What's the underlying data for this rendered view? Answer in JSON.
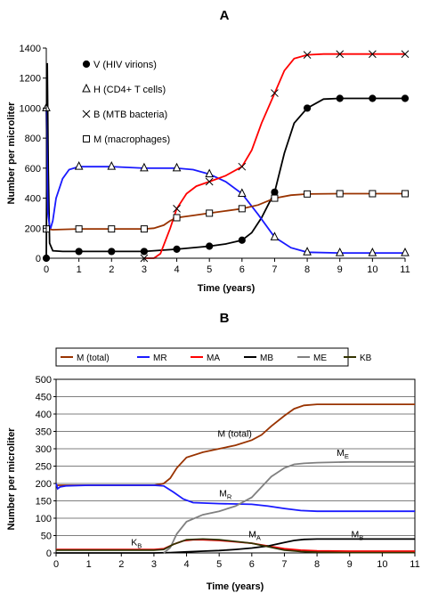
{
  "chart_data": [
    {
      "panel": "A",
      "type": "line",
      "xlabel": "Time (years)",
      "ylabel": "Number per microliter",
      "xlim": [
        0,
        11
      ],
      "ylim": [
        0,
        1400
      ],
      "xticks": [
        0,
        1,
        2,
        3,
        4,
        5,
        6,
        7,
        8,
        9,
        10,
        11
      ],
      "yticks": [
        0,
        200,
        400,
        600,
        800,
        1000,
        1200,
        1400
      ],
      "grid": false,
      "legend_position": "top-right",
      "series": [
        {
          "name": "V (HIV virions)",
          "color": "#000000",
          "marker": "filled-circle",
          "x": [
            0,
            0.03,
            0.06,
            0.1,
            0.2,
            0.5,
            1,
            2,
            3,
            4,
            5,
            5.5,
            6,
            6.3,
            6.6,
            7,
            7.3,
            7.6,
            8,
            8.5,
            9,
            10,
            11
          ],
          "y": [
            0,
            1300,
            600,
            100,
            50,
            45,
            45,
            45,
            45,
            60,
            80,
            95,
            120,
            170,
            270,
            440,
            700,
            900,
            1000,
            1060,
            1065,
            1065,
            1065
          ],
          "markers_x": [
            0,
            1,
            2,
            3,
            4,
            5,
            6,
            7,
            8,
            9,
            10,
            11
          ],
          "markers_y": [
            0,
            45,
            45,
            45,
            60,
            80,
            120,
            440,
            1000,
            1065,
            1065,
            1065
          ]
        },
        {
          "name": "H (CD4+ T cells)",
          "color": "#1a1aff",
          "marker": "open-triangle",
          "x": [
            0,
            0.05,
            0.12,
            0.2,
            0.3,
            0.5,
            0.7,
            1,
            2,
            3,
            4,
            4.5,
            5,
            5.5,
            6,
            6.5,
            7,
            7.5,
            8,
            9,
            10,
            11
          ],
          "y": [
            1000,
            300,
            190,
            250,
            400,
            530,
            590,
            610,
            610,
            600,
            600,
            590,
            560,
            510,
            430,
            290,
            140,
            70,
            40,
            35,
            35,
            35
          ],
          "markers_x": [
            0,
            1,
            2,
            3,
            4,
            5,
            6,
            7,
            8,
            9,
            10,
            11
          ],
          "markers_y": [
            1000,
            610,
            610,
            600,
            600,
            560,
            430,
            140,
            40,
            35,
            35,
            35
          ]
        },
        {
          "name": "B (MTB bacteria)",
          "color": "#ff0000",
          "marker": "x",
          "x": [
            3,
            3.3,
            3.5,
            3.8,
            4,
            4.3,
            4.6,
            5,
            5.5,
            6,
            6.3,
            6.6,
            7,
            7.3,
            7.6,
            8,
            8.5,
            9,
            10,
            11
          ],
          "y": [
            0,
            0,
            30,
            200,
            330,
            430,
            480,
            510,
            550,
            610,
            720,
            900,
            1100,
            1250,
            1330,
            1355,
            1360,
            1360,
            1360,
            1360
          ],
          "markers_x": [
            3,
            4,
            5,
            6,
            7,
            8,
            9,
            10,
            11
          ],
          "markers_y": [
            0,
            330,
            510,
            610,
            1100,
            1355,
            1360,
            1360,
            1360
          ]
        },
        {
          "name": "M (macrophages)",
          "color": "#993300",
          "marker": "open-square",
          "x": [
            0,
            0.2,
            1,
            2,
            3,
            3.3,
            3.6,
            3.8,
            4,
            4.5,
            5,
            5.5,
            6,
            6.5,
            7,
            7.5,
            8,
            9,
            10,
            11
          ],
          "y": [
            195,
            190,
            195,
            195,
            195,
            200,
            220,
            250,
            270,
            285,
            300,
            315,
            330,
            355,
            400,
            420,
            428,
            430,
            430,
            430
          ],
          "markers_x": [
            0,
            1,
            2,
            3,
            4,
            5,
            6,
            7,
            8,
            9,
            10,
            11
          ],
          "markers_y": [
            195,
            195,
            195,
            195,
            270,
            300,
            330,
            400,
            428,
            430,
            430,
            430
          ]
        }
      ]
    },
    {
      "panel": "B",
      "type": "line",
      "xlabel": "Time (years)",
      "ylabel": "Number per microliter",
      "xlim": [
        0,
        11
      ],
      "ylim": [
        0,
        500
      ],
      "xticks": [
        0,
        1,
        2,
        3,
        4,
        5,
        6,
        7,
        8,
        9,
        10,
        11
      ],
      "yticks": [
        0,
        50,
        100,
        150,
        200,
        250,
        300,
        350,
        400,
        450,
        500
      ],
      "grid": true,
      "legend_position": "top",
      "series": [
        {
          "name": "M (total)",
          "color": "#993300",
          "x": [
            0,
            1,
            2,
            3,
            3.3,
            3.5,
            3.7,
            4,
            4.5,
            5,
            5.5,
            6,
            6.3,
            6.6,
            7,
            7.3,
            7.6,
            8,
            9,
            10,
            11
          ],
          "y": [
            195,
            195,
            195,
            195,
            200,
            215,
            245,
            275,
            290,
            300,
            310,
            325,
            340,
            365,
            395,
            415,
            425,
            428,
            428,
            428,
            428
          ]
        },
        {
          "name": "MR",
          "color": "#1a1aff",
          "x": [
            0,
            0.05,
            0.12,
            0.3,
            1,
            2,
            3,
            3.3,
            3.6,
            3.9,
            4.2,
            5,
            6,
            6.5,
            7,
            7.5,
            8,
            9,
            10,
            11
          ],
          "y": [
            200,
            185,
            190,
            193,
            195,
            195,
            195,
            193,
            175,
            155,
            145,
            142,
            140,
            135,
            128,
            122,
            120,
            120,
            120,
            120
          ]
        },
        {
          "name": "MA",
          "color": "#ff0000",
          "x": [
            0,
            3,
            3.3,
            3.6,
            3.9,
            4.2,
            4.5,
            5,
            5.5,
            6,
            6.5,
            7,
            7.5,
            8,
            9,
            10,
            11
          ],
          "y": [
            10,
            10,
            12,
            25,
            35,
            38,
            38,
            36,
            32,
            28,
            20,
            12,
            8,
            6,
            5,
            5,
            5
          ]
        },
        {
          "name": "MB",
          "color": "#000000",
          "x": [
            0,
            3,
            3.5,
            4,
            4.5,
            5,
            5.5,
            6,
            6.5,
            7,
            7.3,
            7.6,
            8,
            9,
            10,
            11
          ],
          "y": [
            0,
            0,
            1,
            3,
            5,
            7,
            10,
            14,
            20,
            30,
            36,
            39,
            40,
            40,
            40,
            40
          ]
        },
        {
          "name": "ME",
          "color": "#808080",
          "x": [
            3.3,
            3.5,
            3.7,
            4,
            4.5,
            5,
            5.5,
            6,
            6.3,
            6.6,
            7,
            7.3,
            7.6,
            8,
            9,
            10,
            11
          ],
          "y": [
            0,
            15,
            55,
            90,
            110,
            120,
            135,
            160,
            190,
            220,
            245,
            255,
            258,
            260,
            262,
            262,
            262
          ]
        },
        {
          "name": "KB",
          "color": "#333300",
          "x": [
            0,
            1,
            2,
            3,
            3.3,
            3.6,
            4,
            4.5,
            5,
            5.5,
            6,
            6.5,
            7,
            7.5,
            8,
            9,
            10,
            11
          ],
          "y": [
            8,
            8,
            8,
            8,
            10,
            25,
            38,
            40,
            38,
            33,
            28,
            18,
            8,
            4,
            2,
            1,
            1,
            1
          ]
        }
      ],
      "annotations": [
        {
          "text": "M (total)",
          "x": 4.95,
          "y": 335
        },
        {
          "text": "M",
          "sub": "E",
          "x": 8.6,
          "y": 280
        },
        {
          "text": "M",
          "sub": "R",
          "x": 5.0,
          "y": 163
        },
        {
          "text": "M",
          "sub": "A",
          "x": 5.9,
          "y": 45
        },
        {
          "text": "M",
          "sub": "B",
          "x": 9.05,
          "y": 45
        },
        {
          "text": "K",
          "sub": "B",
          "x": 2.3,
          "y": 22
        }
      ]
    }
  ],
  "panels": {
    "a_label": "A",
    "b_label": "B"
  }
}
